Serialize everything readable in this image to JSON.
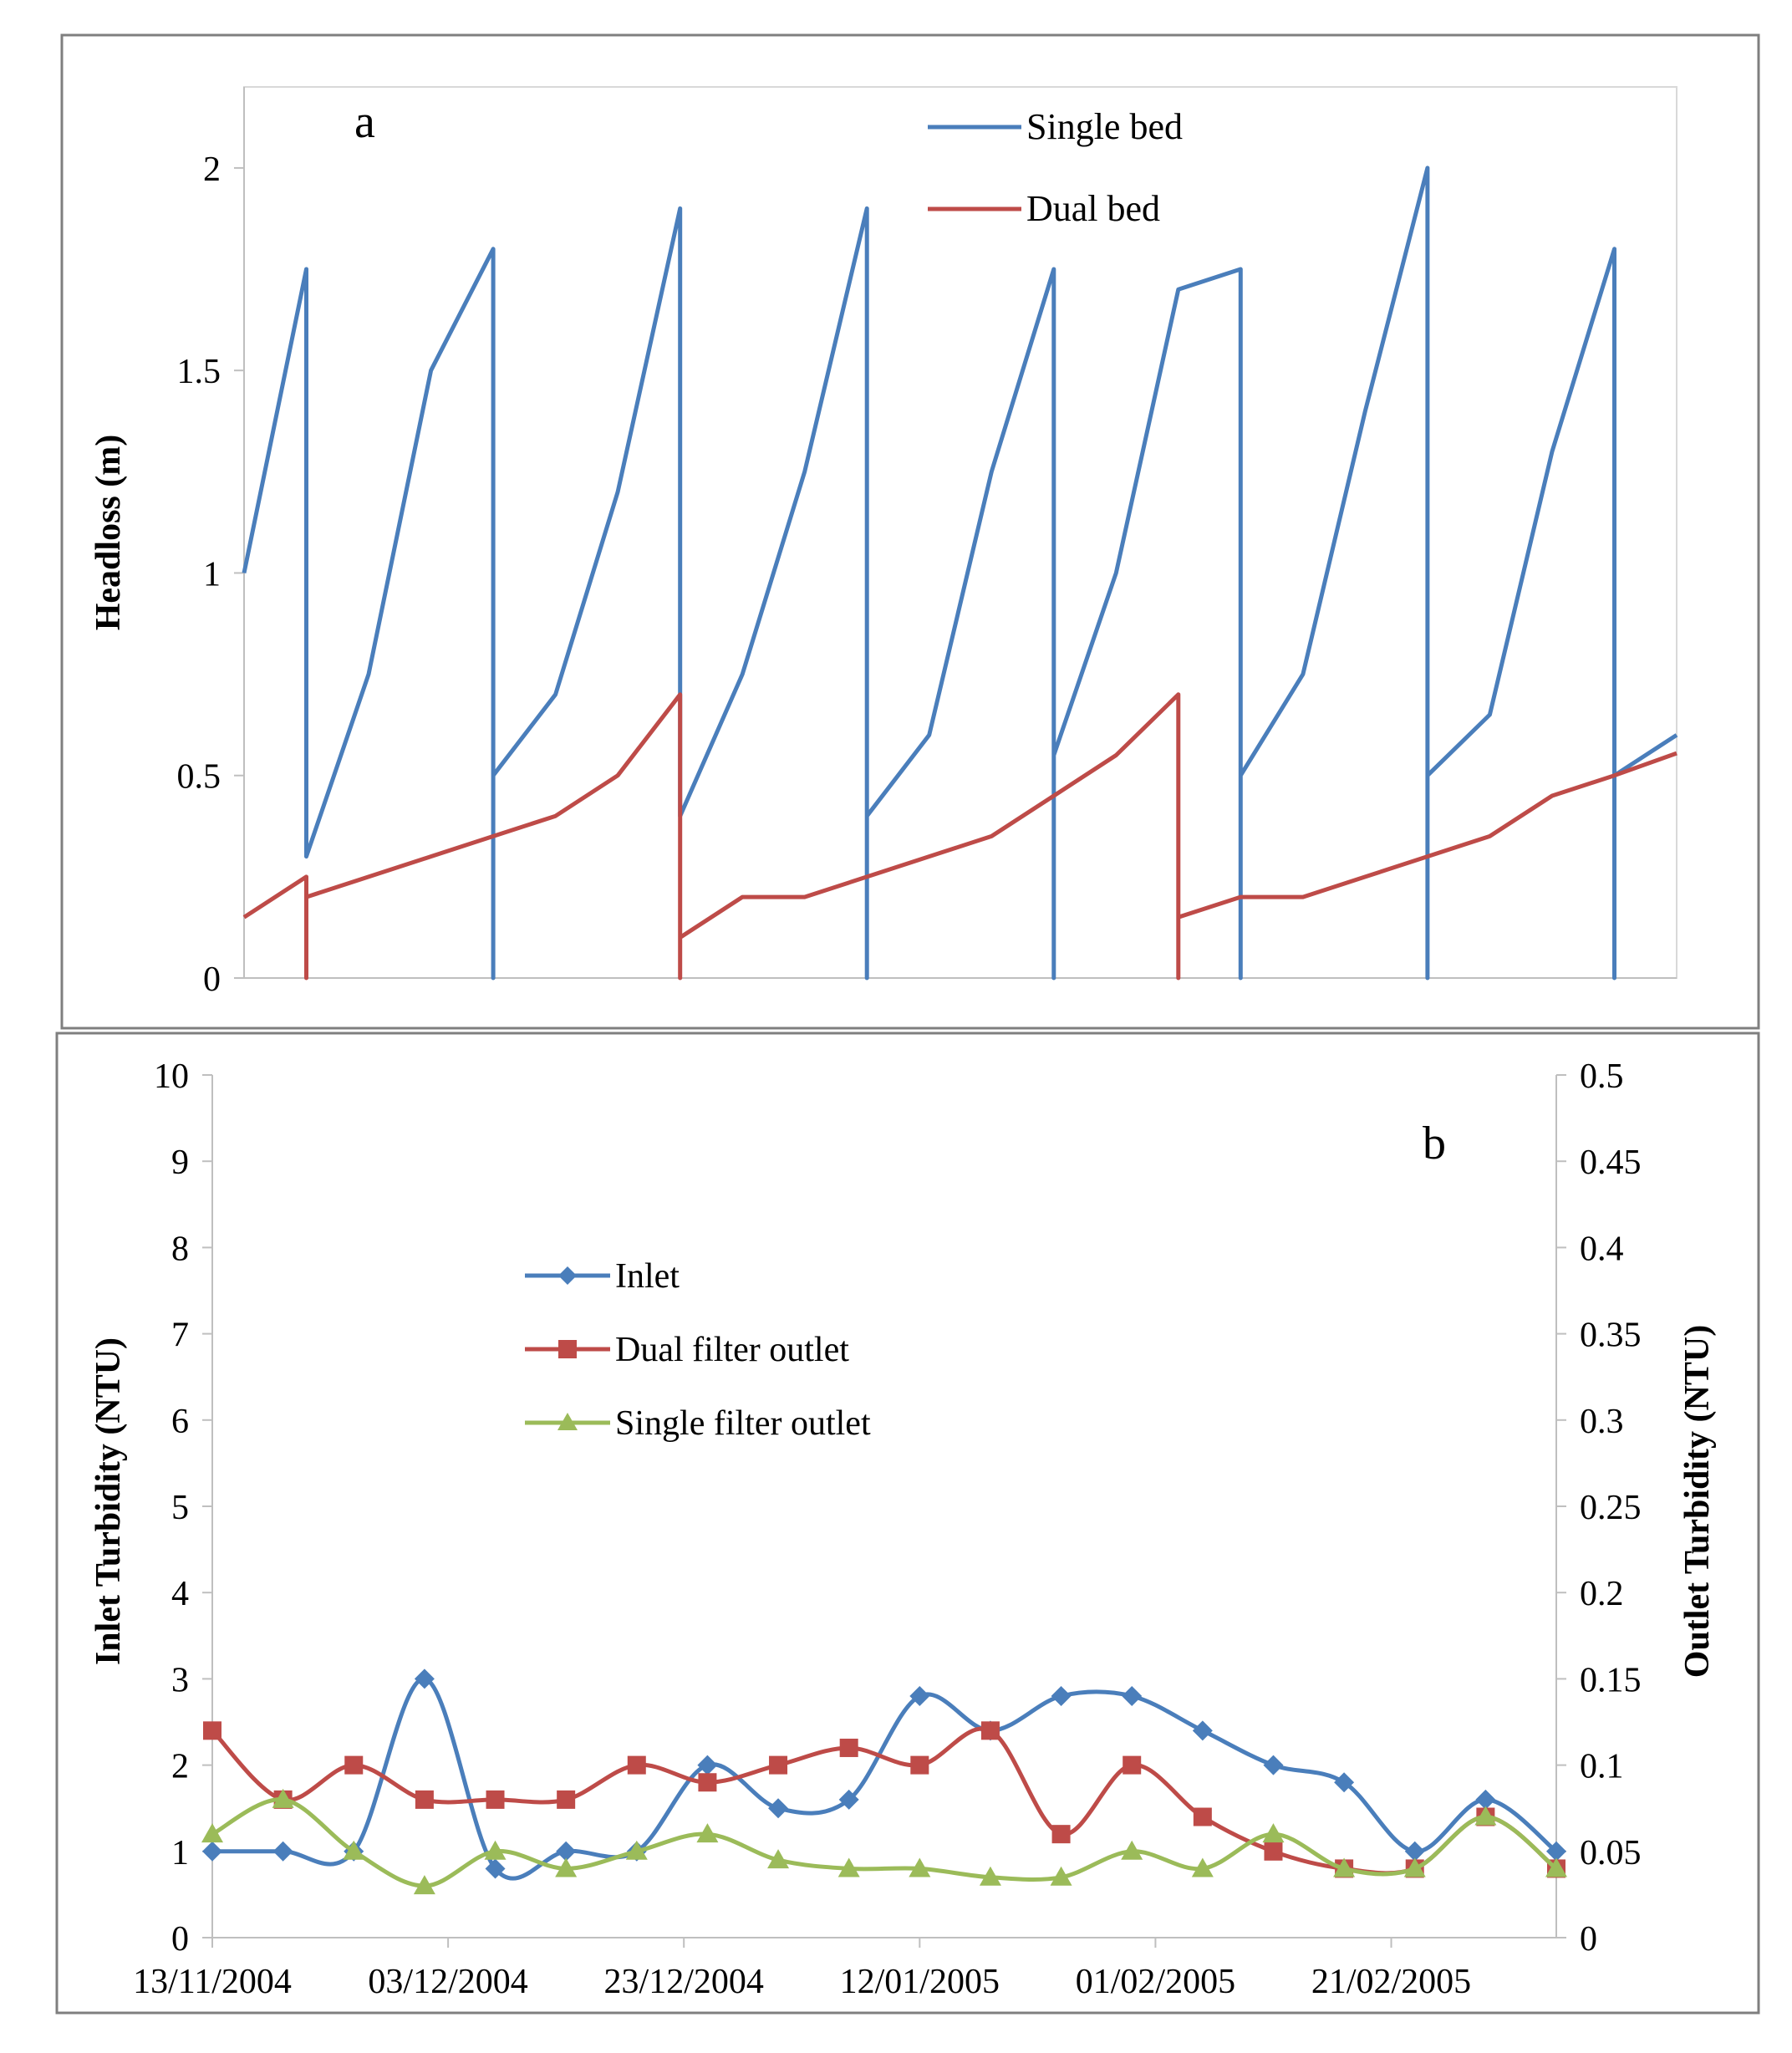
{
  "chart_data": [
    {
      "type": "line",
      "panel_label": "a",
      "ylabel": "Headloss (m)",
      "ylim": [
        0,
        2.2
      ],
      "yticks": [
        0,
        0.5,
        1,
        1.5,
        2
      ],
      "ytick_labels": [
        "0",
        "0.5",
        "1",
        "1.5",
        "2"
      ],
      "xlim": [
        0,
        23
      ],
      "legend": [
        "Single bed",
        "Dual bed"
      ],
      "legend_position": "top-center",
      "colors": {
        "Single bed": "#4a7ebb",
        "Dual bed": "#be4b48"
      },
      "series": [
        {
          "name": "Single bed",
          "points": [
            [
              0,
              1
            ],
            [
              1,
              1.75
            ],
            [
              1,
              0.3
            ],
            [
              2,
              0.75
            ],
            [
              3,
              1.5
            ],
            [
              4,
              1.8
            ],
            [
              4,
              0
            ],
            [
              4,
              0.5
            ],
            [
              5,
              0.7
            ],
            [
              6,
              1.2
            ],
            [
              7,
              1.9
            ],
            [
              7,
              0.4
            ],
            [
              8,
              0.75
            ],
            [
              9,
              1.25
            ],
            [
              10,
              1.9
            ],
            [
              10,
              0
            ],
            [
              10,
              0.4
            ],
            [
              11,
              0.6
            ],
            [
              12,
              1.25
            ],
            [
              13,
              1.75
            ],
            [
              13,
              0
            ],
            [
              13,
              0.55
            ],
            [
              14,
              1
            ],
            [
              15,
              1.7
            ],
            [
              16,
              1.75
            ],
            [
              16,
              0
            ],
            [
              16,
              0.5
            ],
            [
              17,
              0.75
            ],
            [
              18,
              1.4
            ],
            [
              19,
              2
            ],
            [
              19,
              0
            ],
            [
              19,
              0.5
            ],
            [
              20,
              0.65
            ],
            [
              21,
              1.3
            ],
            [
              22,
              1.8
            ],
            [
              22,
              0
            ],
            [
              22,
              0.5
            ],
            [
              23,
              0.6
            ]
          ]
        },
        {
          "name": "Dual bed",
          "points": [
            [
              0,
              0.15
            ],
            [
              1,
              0.25
            ],
            [
              1,
              0
            ],
            [
              1,
              0.2
            ],
            [
              2,
              0.25
            ],
            [
              3,
              0.3
            ],
            [
              4,
              0.35
            ],
            [
              5,
              0.4
            ],
            [
              6,
              0.5
            ],
            [
              7,
              0.7
            ],
            [
              7,
              0
            ],
            [
              7,
              0.1
            ],
            [
              8,
              0.2
            ],
            [
              9,
              0.2
            ],
            [
              10,
              0.25
            ],
            [
              11,
              0.3
            ],
            [
              12,
              0.35
            ],
            [
              13,
              0.45
            ],
            [
              14,
              0.55
            ],
            [
              15,
              0.7
            ],
            [
              15,
              0
            ],
            [
              15,
              0.15
            ],
            [
              16,
              0.2
            ],
            [
              17,
              0.2
            ],
            [
              18,
              0.25
            ],
            [
              19,
              0.3
            ],
            [
              20,
              0.35
            ],
            [
              21,
              0.45
            ],
            [
              22,
              0.5
            ],
            [
              23,
              0.555
            ]
          ]
        }
      ]
    },
    {
      "type": "line",
      "panel_label": "b",
      "ylabel": "Inlet Turbidity  (NTU)",
      "y2label": "Outlet Turbidity  (NTU)",
      "ylim": [
        0,
        10
      ],
      "y2lim": [
        0,
        0.5
      ],
      "yticks": [
        0,
        1,
        2,
        3,
        4,
        5,
        6,
        7,
        8,
        9,
        10
      ],
      "ytick_labels": [
        "0",
        "1",
        "2",
        "3",
        "4",
        "5",
        "6",
        "7",
        "8",
        "9",
        "10"
      ],
      "y2ticks": [
        0,
        0.05,
        0.1,
        0.15,
        0.2,
        0.25,
        0.3,
        0.35,
        0.4,
        0.45,
        0.5
      ],
      "y2tick_labels": [
        "0",
        "0.05",
        "0.1",
        "0.15",
        "0.2",
        "0.25",
        "0.3",
        "0.35",
        "0.4",
        "0.45",
        "0.5"
      ],
      "xlim": [
        0,
        114
      ],
      "xticks": [
        0,
        20,
        40,
        60,
        80,
        100
      ],
      "xtick_labels": [
        "13/11/2004",
        "03/12/2004",
        "23/12/2004",
        "12/01/2005",
        "01/02/2005",
        "21/02/2005"
      ],
      "legend": [
        "Inlet",
        "Dual filter outlet",
        "Single filter outlet"
      ],
      "legend_position": "upper-left-center",
      "colors": {
        "Inlet": "#4a7ebb",
        "Dual filter outlet": "#be4b48",
        "Single filter outlet": "#9bbb59"
      },
      "series": [
        {
          "name": "Inlet",
          "axis": "left",
          "marker": "diamond",
          "x": [
            0,
            6,
            12,
            18,
            24,
            30,
            36,
            42,
            48,
            54,
            60,
            66,
            72,
            78,
            84,
            90,
            96,
            102,
            108,
            114
          ],
          "values": [
            1,
            1,
            1,
            3,
            0.8,
            1,
            1,
            2,
            1.5,
            1.6,
            2.8,
            2.4,
            2.8,
            2.8,
            2.4,
            2,
            1.8,
            1,
            1.6,
            1
          ]
        },
        {
          "name": "Dual filter outlet",
          "axis": "right",
          "marker": "square",
          "x": [
            0,
            6,
            12,
            18,
            24,
            30,
            36,
            42,
            48,
            54,
            60,
            66,
            72,
            78,
            84,
            90,
            96,
            102,
            108,
            114
          ],
          "values": [
            0.12,
            0.08,
            0.1,
            0.08,
            0.08,
            0.08,
            0.1,
            0.09,
            0.1,
            0.11,
            0.1,
            0.12,
            0.06,
            0.1,
            0.07,
            0.05,
            0.04,
            0.04,
            0.07,
            0.04
          ]
        },
        {
          "name": "Single filter outlet",
          "axis": "right",
          "marker": "triangle",
          "x": [
            0,
            6,
            12,
            18,
            24,
            30,
            36,
            42,
            48,
            54,
            60,
            66,
            72,
            78,
            84,
            90,
            96,
            102,
            108,
            114
          ],
          "values": [
            0.06,
            0.08,
            0.05,
            0.03,
            0.05,
            0.04,
            0.05,
            0.06,
            0.045,
            0.04,
            0.04,
            0.035,
            0.035,
            0.05,
            0.04,
            0.06,
            0.04,
            0.04,
            0.07,
            0.04
          ]
        }
      ]
    }
  ]
}
